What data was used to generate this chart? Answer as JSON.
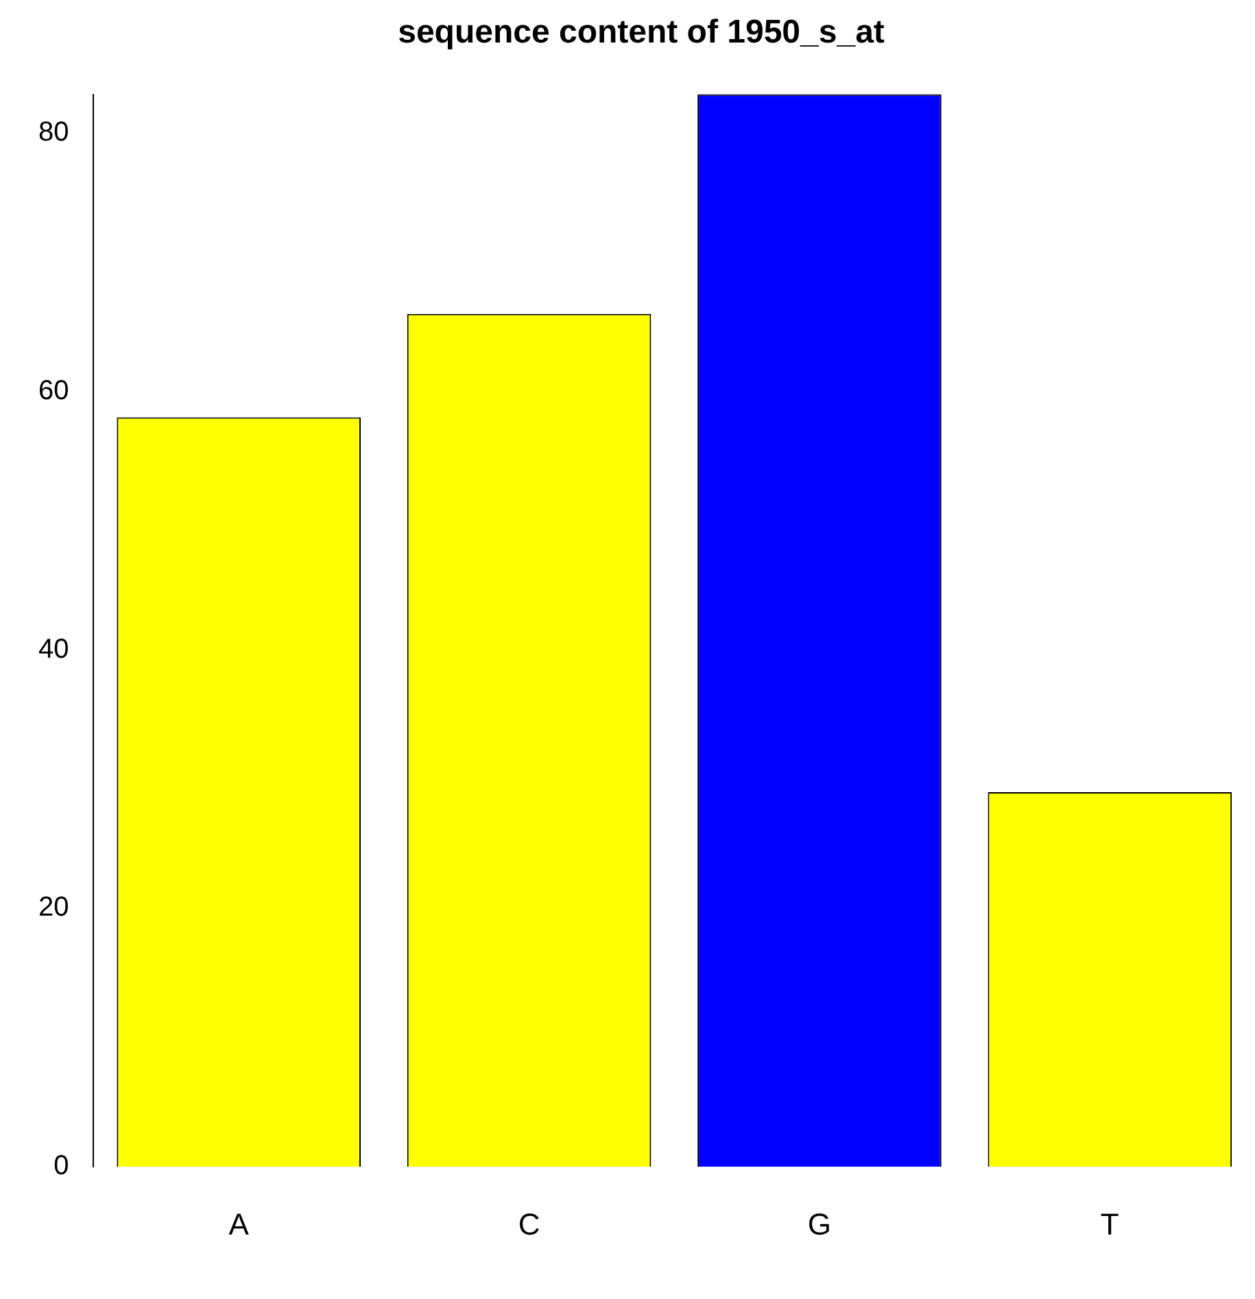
{
  "chart_data": {
    "type": "bar",
    "title": "sequence content of 1950_s_at",
    "categories": [
      "A",
      "C",
      "G",
      "T"
    ],
    "values": [
      58,
      66,
      83,
      29
    ],
    "colors": [
      "#ffff00",
      "#ffff00",
      "#0000ff",
      "#ffff00"
    ],
    "ylim": [
      0,
      83
    ],
    "yticks": [
      0,
      20,
      40,
      60,
      80
    ],
    "grid": false,
    "legend": false
  }
}
